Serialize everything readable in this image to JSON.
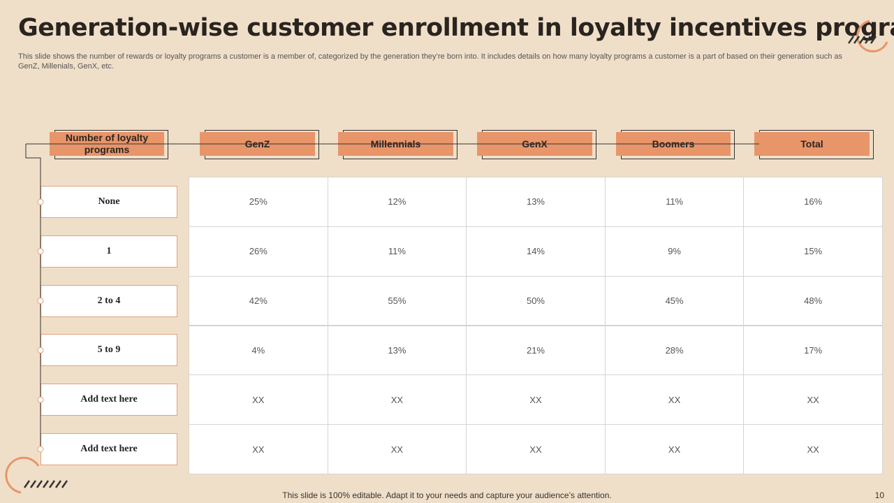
{
  "header": {
    "title": "Generation-wise customer enrollment in loyalty incentives program",
    "description": "This slide shows the number of rewards or loyalty programs a customer is a member of, categorized by the generation they’re born into. It includes details on how many loyalty programs a customer is a part of based on their generation such as GenZ, Millenials, GenX, etc."
  },
  "table": {
    "columns": [
      "Number of loyalty programs",
      "GenZ",
      "Millennials",
      "GenX",
      "Boomers",
      "Total"
    ],
    "row_labels": [
      "None",
      "1",
      "2 to 4",
      "5 to 9",
      "Add text here",
      "Add text here"
    ],
    "rows": [
      [
        "25%",
        "12%",
        "13%",
        "11%",
        "16%"
      ],
      [
        "26%",
        "11%",
        "14%",
        "9%",
        "15%"
      ],
      [
        "42%",
        "55%",
        "50%",
        "45%",
        "48%"
      ],
      [
        "4%",
        "13%",
        "21%",
        "28%",
        "17%"
      ],
      [
        "XX",
        "XX",
        "XX",
        "XX",
        "XX"
      ],
      [
        "XX",
        "XX",
        "XX",
        "XX",
        "XX"
      ]
    ]
  },
  "footer": {
    "note": "This slide is 100% editable. Adapt it to your needs and capture your audience’s attention.",
    "page": "10"
  }
}
